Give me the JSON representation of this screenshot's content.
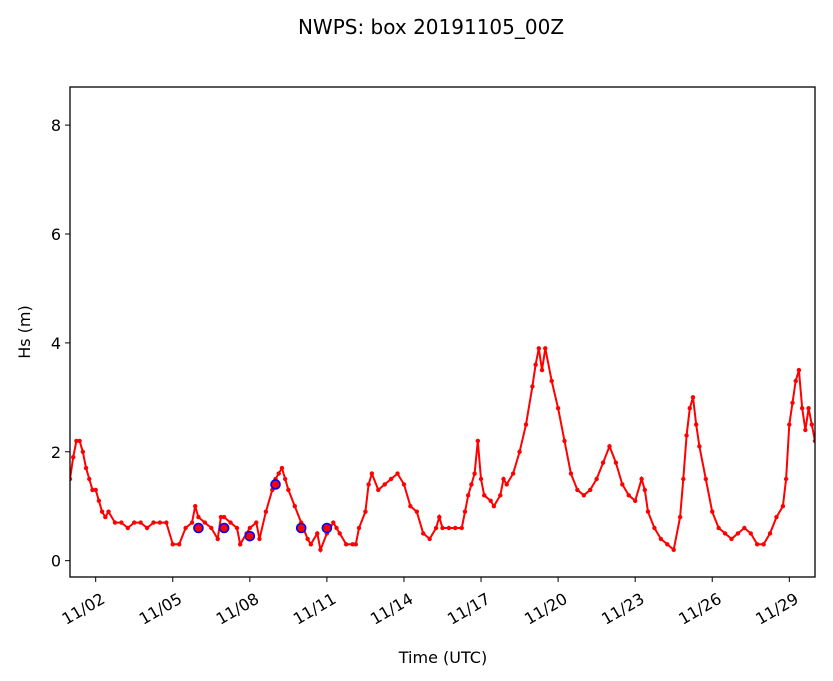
{
  "chart_data": {
    "type": "line",
    "title": "NWPS: box 20191105_00Z",
    "xlabel": "Time (UTC)",
    "ylabel": "Hs (m)",
    "xlim": [
      "2019-11-01T00:00",
      "2019-11-30T00:00"
    ],
    "ylim": [
      -0.3,
      8.7
    ],
    "yticks": [
      0,
      2,
      4,
      6,
      8
    ],
    "xticks": [
      {
        "date": "2019-11-02",
        "label": "11/02"
      },
      {
        "date": "2019-11-05",
        "label": "11/05"
      },
      {
        "date": "2019-11-08",
        "label": "11/08"
      },
      {
        "date": "2019-11-11",
        "label": "11/11"
      },
      {
        "date": "2019-11-14",
        "label": "11/14"
      },
      {
        "date": "2019-11-17",
        "label": "11/17"
      },
      {
        "date": "2019-11-20",
        "label": "11/20"
      },
      {
        "date": "2019-11-23",
        "label": "11/23"
      },
      {
        "date": "2019-11-26",
        "label": "11/26"
      },
      {
        "date": "2019-11-29",
        "label": "11/29"
      }
    ],
    "series": [
      {
        "style": "red-line-markers",
        "color": "#ff0000",
        "points": [
          [
            "2019-11-01T00:00",
            1.5
          ],
          [
            "2019-11-01T03:00",
            1.9
          ],
          [
            "2019-11-01T06:00",
            2.2
          ],
          [
            "2019-11-01T09:00",
            2.2
          ],
          [
            "2019-11-01T12:00",
            2.0
          ],
          [
            "2019-11-01T15:00",
            1.7
          ],
          [
            "2019-11-01T18:00",
            1.5
          ],
          [
            "2019-11-01T21:00",
            1.3
          ],
          [
            "2019-11-02T00:00",
            1.3
          ],
          [
            "2019-11-02T03:00",
            1.1
          ],
          [
            "2019-11-02T06:00",
            0.9
          ],
          [
            "2019-11-02T09:00",
            0.8
          ],
          [
            "2019-11-02T12:00",
            0.9
          ],
          [
            "2019-11-02T18:00",
            0.7
          ],
          [
            "2019-11-03T00:00",
            0.7
          ],
          [
            "2019-11-03T06:00",
            0.6
          ],
          [
            "2019-11-03T12:00",
            0.7
          ],
          [
            "2019-11-03T18:00",
            0.7
          ],
          [
            "2019-11-04T00:00",
            0.6
          ],
          [
            "2019-11-04T06:00",
            0.7
          ],
          [
            "2019-11-04T12:00",
            0.7
          ],
          [
            "2019-11-04T18:00",
            0.7
          ],
          [
            "2019-11-05T00:00",
            0.3
          ],
          [
            "2019-11-05T06:00",
            0.3
          ],
          [
            "2019-11-05T12:00",
            0.6
          ],
          [
            "2019-11-05T18:00",
            0.7
          ],
          [
            "2019-11-05T21:00",
            1.0
          ],
          [
            "2019-11-06T00:00",
            0.8
          ],
          [
            "2019-11-06T06:00",
            0.7
          ],
          [
            "2019-11-06T12:00",
            0.6
          ],
          [
            "2019-11-06T18:00",
            0.4
          ],
          [
            "2019-11-06T21:00",
            0.8
          ],
          [
            "2019-11-07T00:00",
            0.8
          ],
          [
            "2019-11-07T06:00",
            0.7
          ],
          [
            "2019-11-07T12:00",
            0.6
          ],
          [
            "2019-11-07T15:00",
            0.3
          ],
          [
            "2019-11-07T21:00",
            0.5
          ],
          [
            "2019-11-08T00:00",
            0.6
          ],
          [
            "2019-11-08T06:00",
            0.7
          ],
          [
            "2019-11-08T09:00",
            0.4
          ],
          [
            "2019-11-08T15:00",
            0.9
          ],
          [
            "2019-11-08T21:00",
            1.3
          ],
          [
            "2019-11-09T00:00",
            1.5
          ],
          [
            "2019-11-09T03:00",
            1.6
          ],
          [
            "2019-11-09T06:00",
            1.7
          ],
          [
            "2019-11-09T09:00",
            1.5
          ],
          [
            "2019-11-09T12:00",
            1.3
          ],
          [
            "2019-11-09T18:00",
            1.0
          ],
          [
            "2019-11-10T00:00",
            0.7
          ],
          [
            "2019-11-10T06:00",
            0.4
          ],
          [
            "2019-11-10T09:00",
            0.3
          ],
          [
            "2019-11-10T15:00",
            0.5
          ],
          [
            "2019-11-10T18:00",
            0.2
          ],
          [
            "2019-11-11T00:00",
            0.5
          ],
          [
            "2019-11-11T06:00",
            0.7
          ],
          [
            "2019-11-11T09:00",
            0.6
          ],
          [
            "2019-11-11T12:00",
            0.5
          ],
          [
            "2019-11-11T18:00",
            0.3
          ],
          [
            "2019-11-12T00:00",
            0.3
          ],
          [
            "2019-11-12T03:00",
            0.3
          ],
          [
            "2019-11-12T06:00",
            0.6
          ],
          [
            "2019-11-12T12:00",
            0.9
          ],
          [
            "2019-11-12T15:00",
            1.4
          ],
          [
            "2019-11-12T18:00",
            1.6
          ],
          [
            "2019-11-13T00:00",
            1.3
          ],
          [
            "2019-11-13T06:00",
            1.4
          ],
          [
            "2019-11-13T12:00",
            1.5
          ],
          [
            "2019-11-13T18:00",
            1.6
          ],
          [
            "2019-11-14T00:00",
            1.4
          ],
          [
            "2019-11-14T06:00",
            1.0
          ],
          [
            "2019-11-14T12:00",
            0.9
          ],
          [
            "2019-11-14T18:00",
            0.5
          ],
          [
            "2019-11-15T00:00",
            0.4
          ],
          [
            "2019-11-15T06:00",
            0.6
          ],
          [
            "2019-11-15T09:00",
            0.8
          ],
          [
            "2019-11-15T12:00",
            0.6
          ],
          [
            "2019-11-15T18:00",
            0.6
          ],
          [
            "2019-11-16T00:00",
            0.6
          ],
          [
            "2019-11-16T06:00",
            0.6
          ],
          [
            "2019-11-16T09:00",
            0.9
          ],
          [
            "2019-11-16T12:00",
            1.2
          ],
          [
            "2019-11-16T15:00",
            1.4
          ],
          [
            "2019-11-16T18:00",
            1.6
          ],
          [
            "2019-11-16T21:00",
            2.2
          ],
          [
            "2019-11-17T00:00",
            1.5
          ],
          [
            "2019-11-17T03:00",
            1.2
          ],
          [
            "2019-11-17T09:00",
            1.1
          ],
          [
            "2019-11-17T12:00",
            1.0
          ],
          [
            "2019-11-17T18:00",
            1.2
          ],
          [
            "2019-11-17T21:00",
            1.5
          ],
          [
            "2019-11-18T00:00",
            1.4
          ],
          [
            "2019-11-18T06:00",
            1.6
          ],
          [
            "2019-11-18T12:00",
            2.0
          ],
          [
            "2019-11-18T18:00",
            2.5
          ],
          [
            "2019-11-19T00:00",
            3.2
          ],
          [
            "2019-11-19T03:00",
            3.6
          ],
          [
            "2019-11-19T06:00",
            3.9
          ],
          [
            "2019-11-19T09:00",
            3.5
          ],
          [
            "2019-11-19T12:00",
            3.9
          ],
          [
            "2019-11-19T18:00",
            3.3
          ],
          [
            "2019-11-20T00:00",
            2.8
          ],
          [
            "2019-11-20T06:00",
            2.2
          ],
          [
            "2019-11-20T12:00",
            1.6
          ],
          [
            "2019-11-20T18:00",
            1.3
          ],
          [
            "2019-11-21T00:00",
            1.2
          ],
          [
            "2019-11-21T06:00",
            1.3
          ],
          [
            "2019-11-21T12:00",
            1.5
          ],
          [
            "2019-11-21T18:00",
            1.8
          ],
          [
            "2019-11-22T00:00",
            2.1
          ],
          [
            "2019-11-22T06:00",
            1.8
          ],
          [
            "2019-11-22T12:00",
            1.4
          ],
          [
            "2019-11-22T18:00",
            1.2
          ],
          [
            "2019-11-23T00:00",
            1.1
          ],
          [
            "2019-11-23T06:00",
            1.5
          ],
          [
            "2019-11-23T09:00",
            1.3
          ],
          [
            "2019-11-23T12:00",
            0.9
          ],
          [
            "2019-11-23T18:00",
            0.6
          ],
          [
            "2019-11-24T00:00",
            0.4
          ],
          [
            "2019-11-24T06:00",
            0.3
          ],
          [
            "2019-11-24T12:00",
            0.2
          ],
          [
            "2019-11-24T18:00",
            0.8
          ],
          [
            "2019-11-24T21:00",
            1.5
          ],
          [
            "2019-11-25T00:00",
            2.3
          ],
          [
            "2019-11-25T03:00",
            2.8
          ],
          [
            "2019-11-25T06:00",
            3.0
          ],
          [
            "2019-11-25T09:00",
            2.5
          ],
          [
            "2019-11-25T12:00",
            2.1
          ],
          [
            "2019-11-25T18:00",
            1.5
          ],
          [
            "2019-11-26T00:00",
            0.9
          ],
          [
            "2019-11-26T06:00",
            0.6
          ],
          [
            "2019-11-26T12:00",
            0.5
          ],
          [
            "2019-11-26T18:00",
            0.4
          ],
          [
            "2019-11-27T00:00",
            0.5
          ],
          [
            "2019-11-27T06:00",
            0.6
          ],
          [
            "2019-11-27T12:00",
            0.5
          ],
          [
            "2019-11-27T18:00",
            0.3
          ],
          [
            "2019-11-28T00:00",
            0.3
          ],
          [
            "2019-11-28T06:00",
            0.5
          ],
          [
            "2019-11-28T12:00",
            0.8
          ],
          [
            "2019-11-28T18:00",
            1.0
          ],
          [
            "2019-11-28T21:00",
            1.5
          ],
          [
            "2019-11-29T00:00",
            2.5
          ],
          [
            "2019-11-29T03:00",
            2.9
          ],
          [
            "2019-11-29T06:00",
            3.3
          ],
          [
            "2019-11-29T09:00",
            3.5
          ],
          [
            "2019-11-29T12:00",
            2.8
          ],
          [
            "2019-11-29T15:00",
            2.4
          ],
          [
            "2019-11-29T18:00",
            2.8
          ],
          [
            "2019-11-29T21:00",
            2.5
          ],
          [
            "2019-11-30T00:00",
            2.2
          ]
        ]
      },
      {
        "style": "blue-circles",
        "color": "#0000ff",
        "points": [
          [
            "2019-11-06T00:00",
            0.6
          ],
          [
            "2019-11-07T00:00",
            0.6
          ],
          [
            "2019-11-08T00:00",
            0.45
          ],
          [
            "2019-11-09T00:00",
            1.4
          ],
          [
            "2019-11-10T00:00",
            0.6
          ],
          [
            "2019-11-11T00:00",
            0.6
          ]
        ]
      }
    ]
  }
}
